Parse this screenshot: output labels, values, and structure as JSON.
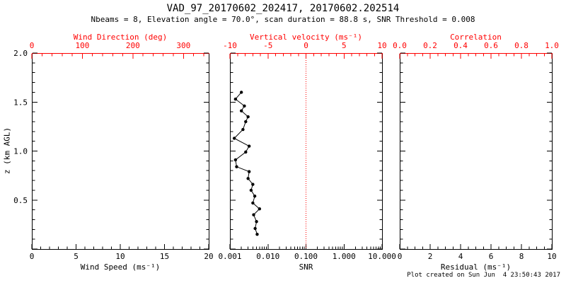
{
  "header": {
    "title": "VAD_97_20170602_202417, 20170602.202514",
    "subtitle": "Nbeams = 8, Elevation angle = 70.0°, scan duration = 88.8 s, SNR Threshold = 0.008"
  },
  "footer": {
    "created": "Plot created on Sun Jun  4 23:50:43 2017"
  },
  "colors": {
    "primary_axis": "#000000",
    "secondary_axis": "#ff0000",
    "data": "#000000",
    "zero_line": "#ff0000",
    "background": "#ffffff"
  },
  "chart_data": [
    {
      "type": "scatter",
      "name": "wind-speed-panel",
      "bottom_axis": {
        "label": "Wind Speed (ms⁻¹)",
        "min": 0,
        "max": 20,
        "scale": "linear",
        "ticks": [
          0,
          5,
          10,
          15,
          20
        ],
        "tick_labels": [
          "0",
          "5",
          "10",
          "15",
          "20"
        ],
        "minor_step": 1
      },
      "top_axis": {
        "label": "Wind Direction (deg)",
        "min": 0,
        "max": 350,
        "scale": "linear",
        "ticks": [
          0,
          100,
          200,
          300
        ],
        "tick_labels": [
          "0",
          "100",
          "200",
          "300"
        ],
        "minor_step": 20
      },
      "y_axis": {
        "label": "z (km AGL)",
        "min": 0,
        "max": 2.0,
        "ticks": [
          0,
          0.5,
          1.0,
          1.5,
          2.0
        ],
        "tick_labels": [
          "",
          "0.5",
          "1.0",
          "1.5",
          "2.0"
        ],
        "minor_step": 0.1
      },
      "series": []
    },
    {
      "type": "scatter",
      "name": "snr-panel",
      "bottom_axis": {
        "label": "SNR",
        "min": 0.001,
        "max": 10,
        "scale": "log",
        "ticks": [
          0.001,
          0.01,
          0.1,
          1,
          10
        ],
        "tick_labels": [
          "0.001",
          "0.010",
          "0.100",
          "1.000",
          "10.000"
        ]
      },
      "top_axis": {
        "label": "Vertical velocity (ms⁻¹)",
        "min": -10,
        "max": 10,
        "scale": "linear",
        "ticks": [
          -10,
          -5,
          0,
          5,
          10
        ],
        "tick_labels": [
          "-10",
          "-5",
          "0",
          "5",
          "10"
        ],
        "minor_step": 1
      },
      "y_axis": {
        "min": 0,
        "max": 2.0,
        "ticks": [
          0,
          0.5,
          1.0,
          1.5,
          2.0
        ],
        "minor_step": 0.1
      },
      "zero_line": {
        "axis": "top",
        "value": 0,
        "style": "dotted"
      },
      "series": [
        {
          "name": "snr-profile",
          "marker": "circle",
          "x": [
            0.002,
            0.0014,
            0.0024,
            0.002,
            0.003,
            0.0026,
            0.0022,
            0.0013,
            0.0032,
            0.0026,
            0.0014,
            0.0015,
            0.0032,
            0.003,
            0.004,
            0.0036,
            0.0045,
            0.004,
            0.006,
            0.0042,
            0.005,
            0.0046,
            0.0052
          ],
          "z": [
            1.6,
            1.53,
            1.46,
            1.41,
            1.35,
            1.3,
            1.22,
            1.13,
            1.05,
            0.99,
            0.91,
            0.84,
            0.79,
            0.72,
            0.66,
            0.6,
            0.54,
            0.47,
            0.41,
            0.35,
            0.28,
            0.21,
            0.15
          ]
        }
      ]
    },
    {
      "type": "scatter",
      "name": "residual-panel",
      "bottom_axis": {
        "label": "Residual (ms⁻¹)",
        "min": 0,
        "max": 10,
        "scale": "linear",
        "ticks": [
          0,
          2,
          4,
          6,
          8,
          10
        ],
        "tick_labels": [
          "0",
          "2",
          "4",
          "6",
          "8",
          "10"
        ],
        "minor_step": 0.5
      },
      "top_axis": {
        "label": "Correlation",
        "min": 0,
        "max": 1,
        "scale": "linear",
        "ticks": [
          0,
          0.2,
          0.4,
          0.6,
          0.8,
          1.0
        ],
        "tick_labels": [
          "0.0",
          "0.2",
          "0.4",
          "0.6",
          "0.8",
          "1.0"
        ],
        "minor_step": 0.05
      },
      "y_axis": {
        "min": 0,
        "max": 2.0,
        "ticks": [
          0,
          0.5,
          1.0,
          1.5,
          2.0
        ],
        "minor_step": 0.1
      },
      "series": []
    }
  ]
}
